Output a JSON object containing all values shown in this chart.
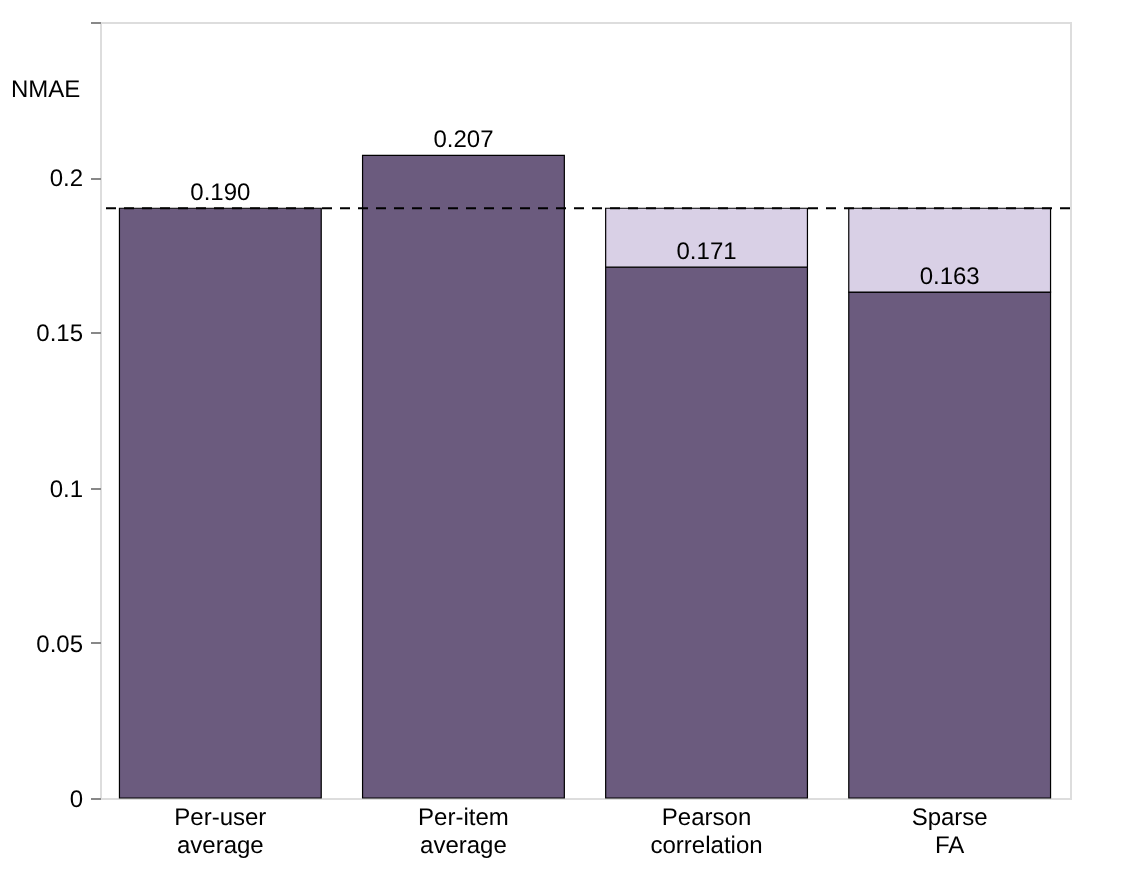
{
  "chart_data": {
    "type": "bar",
    "stacked": true,
    "ylabel": "NMAE",
    "categories": [
      "Per-user average",
      "Per-item average",
      "Pearson correlation",
      "Sparse FA"
    ],
    "series": [
      {
        "color": "#6b5b7e",
        "values": [
          0.19,
          0.207,
          0.171,
          0.163
        ],
        "value_labels": [
          "0.190",
          "0.207",
          "0.171",
          "0.163"
        ]
      },
      {
        "color": "#d9d0e6",
        "values": [
          null,
          null,
          0.019,
          0.027
        ]
      }
    ],
    "ylim": [
      0,
      0.25
    ],
    "yticks": [
      0,
      0.05,
      0.1,
      0.15,
      0.2,
      {
        "value": 0.25,
        "label": null
      }
    ],
    "ref_lines": [
      {
        "axis": "y",
        "value": 0.19,
        "line_style": "dashed",
        "color": "#000000"
      }
    ],
    "grid": false,
    "legend": false
  }
}
